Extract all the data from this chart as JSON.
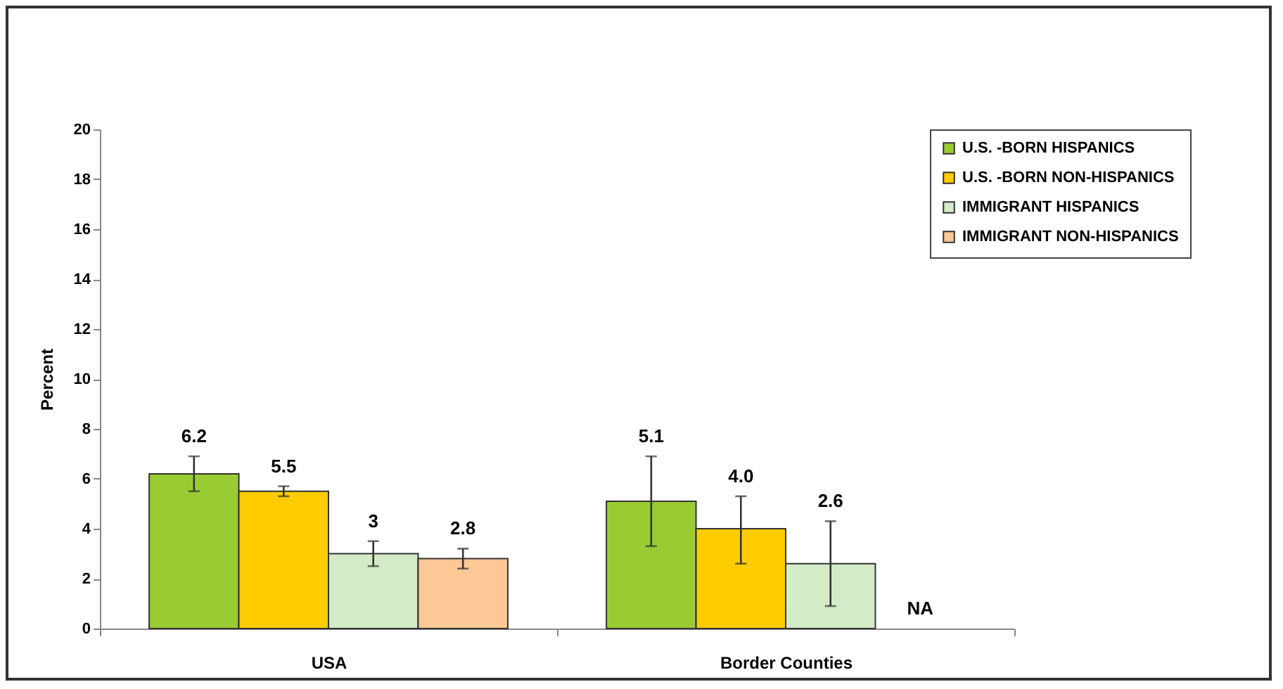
{
  "chart_data": {
    "type": "bar",
    "ylabel": "Percent",
    "categories": [
      "USA",
      "Border Counties"
    ],
    "series": [
      {
        "name": "U.S. -BORN HISPANICS",
        "color": "#99cc33",
        "values": [
          6.2,
          5.1
        ],
        "errors": [
          [
            5.5,
            6.9
          ],
          [
            3.3,
            6.9
          ]
        ],
        "value_labels": [
          "6.2",
          "5.1"
        ]
      },
      {
        "name": "U.S. -BORN NON-HISPANICS",
        "color": "#ffcc00",
        "values": [
          5.5,
          4.0
        ],
        "errors": [
          [
            5.3,
            5.7
          ],
          [
            2.6,
            5.3
          ]
        ],
        "value_labels": [
          "5.5",
          "4.0"
        ]
      },
      {
        "name": "IMMIGRANT HISPANICS",
        "color": "#d4ebc8",
        "values": [
          3,
          2.6
        ],
        "errors": [
          [
            2.5,
            3.5
          ],
          [
            0.9,
            4.3
          ]
        ],
        "value_labels": [
          "3",
          "2.6"
        ]
      },
      {
        "name": "IMMIGRANT NON-HISPANICS",
        "color": "#fcc896",
        "values": [
          2.8,
          null
        ],
        "errors": [
          [
            2.4,
            3.2
          ],
          null
        ],
        "value_labels": [
          "2.8",
          "NA"
        ]
      }
    ],
    "ylim": [
      0,
      20
    ],
    "yticks": [
      0,
      2,
      4,
      6,
      8,
      10,
      12,
      14,
      16,
      18,
      20
    ],
    "grid": false,
    "legend": "right"
  }
}
